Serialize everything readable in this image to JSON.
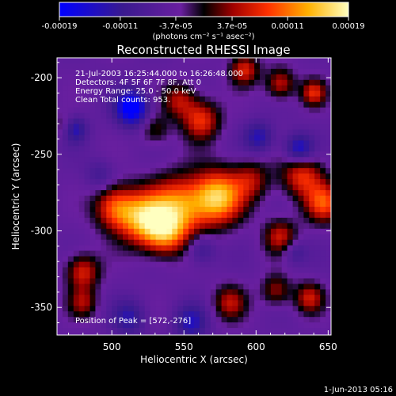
{
  "chart_data": {
    "type": "heatmap",
    "title": "Reconstructed RHESSI Image",
    "xlabel": "Heliocentric X (arcsec)",
    "ylabel": "Heliocentric Y (arcsec)",
    "xlim": [
      462,
      652
    ],
    "ylim": [
      -368,
      -187
    ],
    "x_ticks": [
      500,
      550,
      600,
      650
    ],
    "y_ticks": [
      -200,
      -250,
      -300,
      -350
    ],
    "colorbar": {
      "ticks": [
        "-0.00019",
        "-0.00011",
        "-3.7e-05",
        "3.7e-05",
        "0.00011",
        "0.00019"
      ],
      "range": [
        -0.00019,
        0.00019
      ],
      "unit_label": "(photons cm⁻² s⁻¹ asec⁻²)",
      "colors": [
        "#0000ff",
        "#3a1a8f",
        "#6a1fa0",
        "#000000",
        "#a00000",
        "#ff3000",
        "#ffb000",
        "#ffffc0"
      ]
    },
    "annotations": [
      "21-Jul-2003 16:25:44.000 to 16:26:48.000",
      "Detectors: 4F 5F 6F 7F 8F, Att 0",
      "Energy Range: 25.0 - 50.0 keV",
      "Clean      Total counts: 953."
    ],
    "peak_label": "Position of Peak = [572,-276]",
    "peak": [
      572,
      -276
    ],
    "sources": [
      {
        "x": 572,
        "y": -276,
        "v": 0.00019,
        "s": 12
      },
      {
        "x": 545,
        "y": -283,
        "v": 0.00016,
        "s": 14
      },
      {
        "x": 520,
        "y": -290,
        "v": 0.00017,
        "s": 12
      },
      {
        "x": 500,
        "y": -283,
        "v": 0.00013,
        "s": 10
      },
      {
        "x": 535,
        "y": -300,
        "v": 0.00012,
        "s": 10
      },
      {
        "x": 595,
        "y": -265,
        "v": 8e-05,
        "s": 9
      },
      {
        "x": 630,
        "y": -262,
        "v": 0.00012,
        "s": 10
      },
      {
        "x": 645,
        "y": -280,
        "v": 0.00013,
        "s": 9
      },
      {
        "x": 615,
        "y": -302,
        "v": 0.0001,
        "s": 8
      },
      {
        "x": 560,
        "y": -226,
        "v": 0.00012,
        "s": 9
      },
      {
        "x": 545,
        "y": -213,
        "v": 9e-05,
        "s": 8
      },
      {
        "x": 590,
        "y": -193,
        "v": 0.00011,
        "s": 7
      },
      {
        "x": 615,
        "y": -202,
        "v": 0.0001,
        "s": 7
      },
      {
        "x": 638,
        "y": -208,
        "v": 0.00011,
        "s": 6
      },
      {
        "x": 478,
        "y": -325,
        "v": 0.00011,
        "s": 8
      },
      {
        "x": 478,
        "y": -345,
        "v": 8e-05,
        "s": 7
      },
      {
        "x": 580,
        "y": -345,
        "v": 9e-05,
        "s": 8
      },
      {
        "x": 612,
        "y": -337,
        "v": 8e-05,
        "s": 7
      },
      {
        "x": 635,
        "y": -342,
        "v": 0.0001,
        "s": 7
      },
      {
        "x": 528,
        "y": -232,
        "v": 6e-05,
        "s": 7
      },
      {
        "x": 465,
        "y": -230,
        "v": 5e-05,
        "s": 6
      },
      {
        "x": 512,
        "y": -218,
        "v": -0.00017,
        "s": 8
      },
      {
        "x": 628,
        "y": -245,
        "v": -0.00012,
        "s": 7
      },
      {
        "x": 472,
        "y": -232,
        "v": -0.0001,
        "s": 6
      },
      {
        "x": 600,
        "y": -237,
        "v": -9e-05,
        "s": 7
      },
      {
        "x": 510,
        "y": -355,
        "v": -8e-05,
        "s": 8
      },
      {
        "x": 553,
        "y": -358,
        "v": -9e-05,
        "s": 8
      },
      {
        "x": 560,
        "y": -310,
        "v": -7e-05,
        "s": 7
      },
      {
        "x": 625,
        "y": -312,
        "v": -6e-05,
        "s": 6
      },
      {
        "x": 490,
        "y": -262,
        "v": -5e-05,
        "s": 7
      }
    ]
  },
  "footer": {
    "timestamp": "1-Jun-2013 05:16"
  }
}
